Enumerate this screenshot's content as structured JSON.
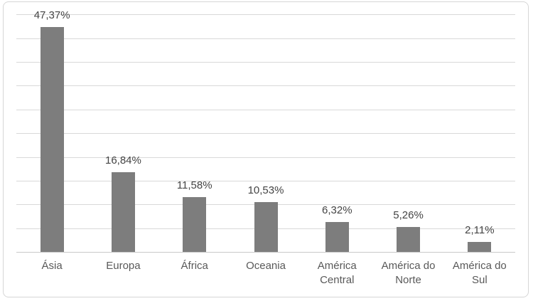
{
  "chart_data": {
    "type": "bar",
    "title": "",
    "xlabel": "",
    "ylabel": "",
    "categories": [
      "Ásia",
      "Europa",
      "África",
      "Oceania",
      "América Central",
      "América do Norte",
      "América do Sul"
    ],
    "values": [
      47.37,
      16.84,
      11.58,
      10.53,
      6.32,
      5.26,
      2.11
    ],
    "data_labels": [
      "47,37%",
      "16,84%",
      "11,58%",
      "10,53%",
      "6,32%",
      "5,26%",
      "2,11%"
    ],
    "ylim": [
      0,
      50
    ],
    "gridline_step": 5,
    "grid": true,
    "legend": false,
    "axis_ticks_visible": false,
    "colors": {
      "bar": "#7d7d7d",
      "gridline": "#d9d9d9",
      "axis_line": "#c9c9c9",
      "data_label": "#444444",
      "category_label": "#595959",
      "chart_border": "#d6d6d6",
      "background": "#ffffff"
    }
  }
}
